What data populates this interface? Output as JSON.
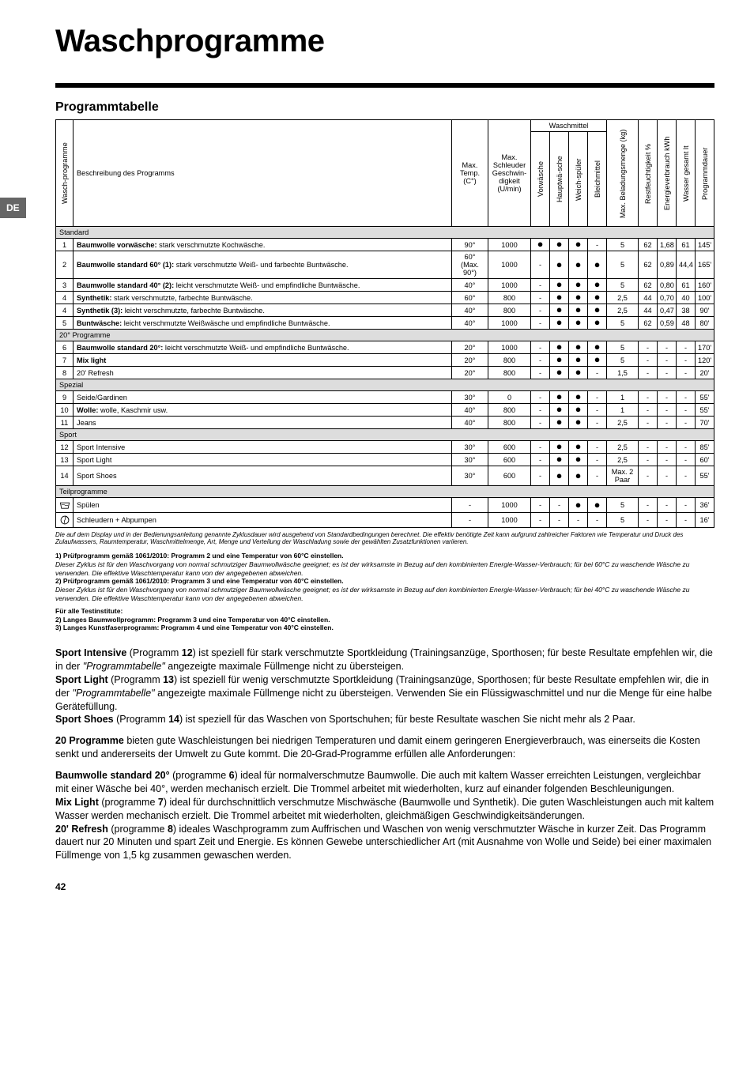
{
  "lang_tab": "DE",
  "title": "Waschprogramme",
  "section_title": "Programmtabelle",
  "page_number": "42",
  "headers": {
    "prog_col": "Wasch-programme",
    "desc": "Beschreibung des Programms",
    "temp": "Max. Temp. (C°)",
    "spin": "Max. Schleuder Geschwin-digkeit (U/min)",
    "detergent_group": "Waschmittel",
    "prewash": "Vorwäsche",
    "mainwash": "Hauptwä-sche",
    "softener": "Weich-spüler",
    "bleach": "Bleichmittel",
    "load": "Max. Beladungsmenge (kg)",
    "humidity": "Restfeuchtigkeit %",
    "energy": "Energieverbrauch kWh",
    "water": "Wasser gesamt lt",
    "duration": "Programmdauer"
  },
  "sections": [
    {
      "label": "Standard",
      "rows": [
        {
          "n": "1",
          "desc_b": "Baumwolle vorwäsche:",
          "desc": " stark verschmutzte Kochwäsche.",
          "temp": "90°",
          "spin": "1000",
          "pre": "●",
          "main": "●",
          "soft": "●",
          "bleach": "-",
          "load": "5",
          "hum": "62",
          "en": "1,68",
          "wat": "61",
          "dur": "145'"
        },
        {
          "n": "2",
          "desc_b": "Baumwolle standard 60° (1):",
          "desc": " stark verschmutzte Weiß- und farbechte Buntwäsche.",
          "temp": "60° (Max. 90°)",
          "spin": "1000",
          "pre": "-",
          "main": "●",
          "soft": "●",
          "bleach": "●",
          "load": "5",
          "hum": "62",
          "en": "0,89",
          "wat": "44,4",
          "dur": "165'"
        },
        {
          "n": "3",
          "desc_b": "Baumwolle standard 40° (2):",
          "desc": " leicht verschmutzte Weiß- und empfindliche Buntwäsche.",
          "temp": "40°",
          "spin": "1000",
          "pre": "-",
          "main": "●",
          "soft": "●",
          "bleach": "●",
          "load": "5",
          "hum": "62",
          "en": "0,80",
          "wat": "61",
          "dur": "160'"
        },
        {
          "n": "4",
          "desc_b": "Synthetik:",
          "desc": " stark verschmutzte, farbechte Buntwäsche.",
          "temp": "60°",
          "spin": "800",
          "pre": "-",
          "main": "●",
          "soft": "●",
          "bleach": "●",
          "load": "2,5",
          "hum": "44",
          "en": "0,70",
          "wat": "40",
          "dur": "100'"
        },
        {
          "n": "4",
          "desc_b": "Synthetik (3):",
          "desc": " leicht verschmutzte, farbechte Buntwäsche.",
          "temp": "40°",
          "spin": "800",
          "pre": "-",
          "main": "●",
          "soft": "●",
          "bleach": "●",
          "load": "2,5",
          "hum": "44",
          "en": "0,47",
          "wat": "38",
          "dur": "90'"
        },
        {
          "n": "5",
          "desc_b": "Buntwäsche:",
          "desc": " leicht verschmutzte Weißwäsche und empfindliche Buntwäsche.",
          "temp": "40°",
          "spin": "1000",
          "pre": "-",
          "main": "●",
          "soft": "●",
          "bleach": "●",
          "load": "5",
          "hum": "62",
          "en": "0,59",
          "wat": "48",
          "dur": "80'"
        }
      ]
    },
    {
      "label": "20° Programme",
      "rows": [
        {
          "n": "6",
          "desc_b": "Baumwolle standard 20°:",
          "desc": " leicht verschmutzte Weiß- und empfindliche Buntwäsche.",
          "temp": "20°",
          "spin": "1000",
          "pre": "-",
          "main": "●",
          "soft": "●",
          "bleach": "●",
          "load": "5",
          "hum": "-",
          "en": "-",
          "wat": "-",
          "dur": "170'"
        },
        {
          "n": "7",
          "desc_b": "Mix light",
          "desc": "",
          "temp": "20°",
          "spin": "800",
          "pre": "-",
          "main": "●",
          "soft": "●",
          "bleach": "●",
          "load": "5",
          "hum": "-",
          "en": "-",
          "wat": "-",
          "dur": "120'"
        },
        {
          "n": "8",
          "desc_b": "",
          "desc": "20' Refresh",
          "temp": "20°",
          "spin": "800",
          "pre": "-",
          "main": "●",
          "soft": "●",
          "bleach": "-",
          "load": "1,5",
          "hum": "-",
          "en": "-",
          "wat": "-",
          "dur": "20'"
        }
      ]
    },
    {
      "label": "Spezial",
      "rows": [
        {
          "n": "9",
          "desc_b": "",
          "desc": "Seide/Gardinen",
          "temp": "30°",
          "spin": "0",
          "pre": "-",
          "main": "●",
          "soft": "●",
          "bleach": "-",
          "load": "1",
          "hum": "-",
          "en": "-",
          "wat": "-",
          "dur": "55'"
        },
        {
          "n": "10",
          "desc_b": "Wolle:",
          "desc": " wolle, Kaschmir usw.",
          "temp": "40°",
          "spin": "800",
          "pre": "-",
          "main": "●",
          "soft": "●",
          "bleach": "-",
          "load": "1",
          "hum": "-",
          "en": "-",
          "wat": "-",
          "dur": "55'"
        },
        {
          "n": "11",
          "desc_b": "",
          "desc": "Jeans",
          "temp": "40°",
          "spin": "800",
          "pre": "-",
          "main": "●",
          "soft": "●",
          "bleach": "-",
          "load": "2,5",
          "hum": "-",
          "en": "-",
          "wat": "-",
          "dur": "70'"
        }
      ]
    },
    {
      "label": "Sport",
      "rows": [
        {
          "n": "12",
          "desc_b": "",
          "desc": "Sport Intensive",
          "temp": "30°",
          "spin": "600",
          "pre": "-",
          "main": "●",
          "soft": "●",
          "bleach": "-",
          "load": "2,5",
          "hum": "-",
          "en": "-",
          "wat": "-",
          "dur": "85'"
        },
        {
          "n": "13",
          "desc_b": "",
          "desc": "Sport Light",
          "temp": "30°",
          "spin": "600",
          "pre": "-",
          "main": "●",
          "soft": "●",
          "bleach": "-",
          "load": "2,5",
          "hum": "-",
          "en": "-",
          "wat": "-",
          "dur": "60'"
        },
        {
          "n": "14",
          "desc_b": "",
          "desc": "Sport Shoes",
          "temp": "30°",
          "spin": "600",
          "pre": "-",
          "main": "●",
          "soft": "●",
          "bleach": "-",
          "load": "Max. 2 Paar",
          "hum": "-",
          "en": "-",
          "wat": "-",
          "dur": "55'"
        }
      ]
    },
    {
      "label": "Teilprogramme",
      "rows": [
        {
          "n": "icon-rinse",
          "desc_b": "",
          "desc": "Spülen",
          "temp": "-",
          "spin": "1000",
          "pre": "-",
          "main": "-",
          "soft": "●",
          "bleach": "●",
          "load": "5",
          "hum": "-",
          "en": "-",
          "wat": "-",
          "dur": "36'"
        },
        {
          "n": "icon-spin",
          "desc_b": "",
          "desc": "Schleudern + Abpumpen",
          "temp": "-",
          "spin": "1000",
          "pre": "-",
          "main": "-",
          "soft": "-",
          "bleach": "-",
          "load": "5",
          "hum": "-",
          "en": "-",
          "wat": "-",
          "dur": "16'"
        }
      ]
    }
  ],
  "footnote": "Die auf dem Display und in der Bedienungsanleitung genannte Zyklusdauer wird ausgehend von Standardbedingungen berechnet. Die effektiv benötigte Zeit kann aufgrund zahlreicher Faktoren wie Temperatur und Druck des Zulaufwassers, Raumtemperatur, Waschmittelmenge, Art, Menge und Verteilung der Waschladung sowie der gewählten Zusatzfunktionen variieren.",
  "tests": {
    "t1b": "1) Prüfprogramm gemäß 1061/2010: Programm 2 und eine Temperatur von 60°C einstellen.",
    "t1i": "Dieser Zyklus ist für den Waschvorgang von normal schmutziger Baumwollwäsche geeignet; es ist der wirksamste in Bezug auf den kombinierten Energie-Wasser-Verbrauch; für bei 60°C zu waschende Wäsche zu verwenden. Die effektive Waschtemperatur kann von der angegebenen abweichen.",
    "t2b": "2) Prüfprogramm gemäß 1061/2010: Programm 3 und eine Temperatur von 40°C einstellen.",
    "t2i": "Dieser Zyklus ist für den Waschvorgang von normal schmutziger Baumwollwäsche geeignet; es ist der wirksamste in Bezug auf den kombinierten Energie-Wasser-Verbrauch; für bei 40°C zu waschende Wäsche zu verwenden. Die effektive Waschtemperatur kann von der angegebenen abweichen.",
    "t3b": "Für alle Testinstitute:",
    "t4b": "2) Langes Baumwollprogramm: Programm 3 und eine Temperatur von 40°C einstellen.",
    "t5b": "3) Langes Kunstfaserprogramm: Programm 4 und eine Temperatur von 40°C einstellen."
  },
  "body": {
    "p1a": "Sport Intensive",
    "p1b": " (Programm ",
    "p1c": "12",
    "p1d": ") ist speziell für stark verschmutzte Sportkleidung (Trainingsanzüge, Sporthosen; für beste Resultate empfehlen wir, die in der ",
    "p1e": "\"Programmtabelle\"",
    "p1f": " angezeigte maximale Füllmenge nicht zu übersteigen.",
    "p2a": "Sport Light",
    "p2b": " (Programm ",
    "p2c": "13",
    "p2d": ") ist speziell für wenig verschmutzte Sportkleidung (Trainingsanzüge, Sporthosen; für beste Resultate empfehlen wir, die in der ",
    "p2e": "\"Programmtabelle\"",
    "p2f": " angezeigte maximale Füllmenge nicht zu übersteigen. Verwenden Sie ein Flüssigwaschmittel und nur die Menge für eine halbe Gerätefüllung.",
    "p3a": "Sport Shoes",
    "p3b": " (Programm ",
    "p3c": "14",
    "p3d": ") ist speziell für das Waschen von Sportschuhen; für beste Resultate waschen Sie nicht mehr als 2 Paar.",
    "p4a": "20 Programme",
    "p4b": " bieten gute Waschleistungen bei niedrigen Temperaturen und damit einem geringeren Energieverbrauch, was einerseits die Kosten senkt und andererseits der Umwelt zu Gute kommt. Die 20-Grad-Programme erfüllen alle Anforderungen:",
    "p5a": "Baumwolle standard 20°",
    "p5b": " (programme ",
    "p5c": "6",
    "p5d": ") ideal für normalverschmutze Baumwolle. Die auch mit kaltem Wasser erreichten Leistungen, vergleichbar mit einer Wäsche bei 40°, werden mechanisch erzielt. Die Trommel arbeitet mit wiederholten, kurz auf einander folgenden Beschleunigungen.",
    "p6a": "Mix Light",
    "p6b": " (programme ",
    "p6c": "7",
    "p6d": ") ideal für durchschnittlich verschmutze Mischwäsche (Baumwolle und Synthetik). Die guten Waschleistungen auch mit kaltem Wasser werden mechanisch erzielt. Die Trommel arbeitet mit wiederholten, gleichmäßigen Geschwindigkeitsänderungen.",
    "p7a": "20' Refresh",
    "p7b": " (programme ",
    "p7c": "8",
    "p7d": ") ideales Waschprogramm zum Auffrischen und Waschen von wenig verschmutzter Wäsche in kurzer Zeit. Das Programm dauert nur 20 Minuten und spart Zeit und Energie. Es können Gewebe unterschiedlicher Art (mit Ausnahme von Wolle und Seide) bei einer maximalen Füllmenge von 1,5 kg zusammen gewaschen werden."
  },
  "colors": {
    "section_bg": "#dddddd",
    "tab_bg": "#666666"
  },
  "col_widths": [
    "22px",
    "auto",
    "46px",
    "54px",
    "24px",
    "24px",
    "24px",
    "24px",
    "40px",
    "24px",
    "24px",
    "24px",
    "24px"
  ]
}
